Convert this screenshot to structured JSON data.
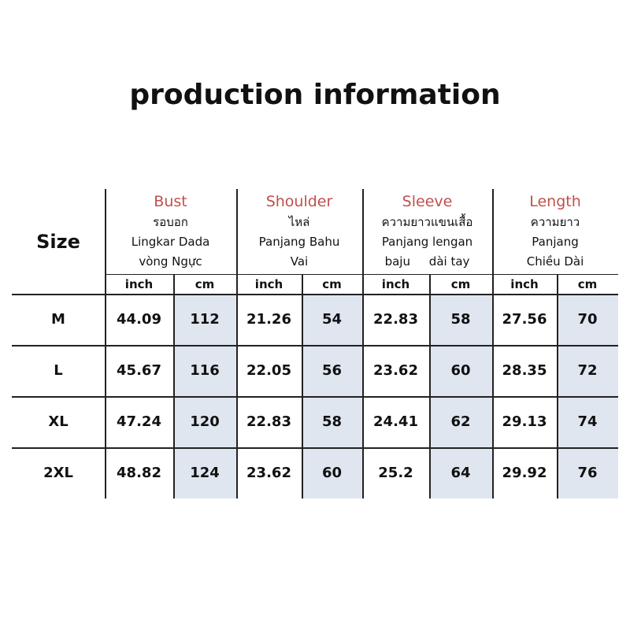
{
  "title": "production information",
  "table": {
    "size_label": "Size",
    "units": [
      "inch",
      "cm"
    ],
    "groups": [
      {
        "title": "Bust",
        "lines": [
          "รอบอก",
          "Lingkar Dada",
          "vòng Ngực"
        ]
      },
      {
        "title": "Shoulder",
        "lines": [
          "ไหล่",
          "Panjang Bahu",
          "Vai"
        ]
      },
      {
        "title": "Sleeve",
        "lines": [
          "ความยาวแขนเสื้อ",
          "Panjang lengan",
          "baju     dài tay"
        ]
      },
      {
        "title": "Length",
        "lines": [
          "ความยาว",
          "Panjang",
          "Chiều Dài"
        ]
      }
    ],
    "rows": [
      {
        "size": "M",
        "values": [
          44.09,
          112,
          21.26,
          54,
          22.83,
          58,
          27.56,
          70
        ]
      },
      {
        "size": "L",
        "values": [
          45.67,
          116,
          22.05,
          56,
          23.62,
          60,
          28.35,
          72
        ]
      },
      {
        "size": "XL",
        "values": [
          47.24,
          120,
          22.83,
          58,
          24.41,
          62,
          29.13,
          74
        ]
      },
      {
        "size": "2XL",
        "values": [
          48.82,
          124,
          23.62,
          60,
          25.2,
          64,
          29.92,
          76
        ]
      }
    ]
  }
}
